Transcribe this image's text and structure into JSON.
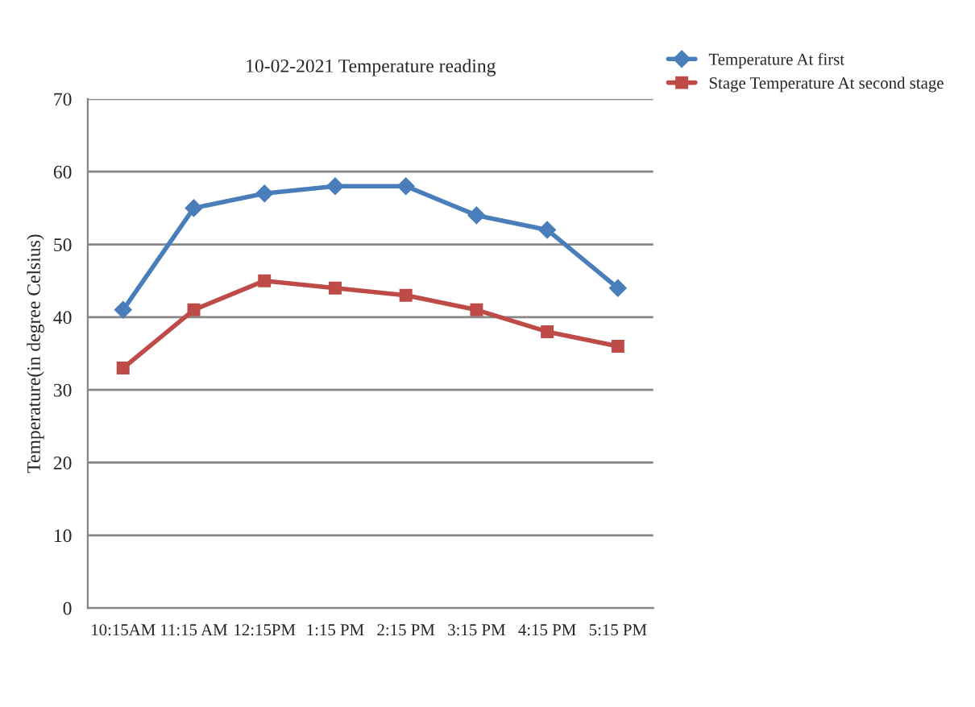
{
  "chart_data": {
    "type": "line",
    "title": "10-02-2021 Temperature reading",
    "ylabel": "Temperature(in degree Celsius)",
    "categories": [
      "10:15AM",
      "11:15 AM",
      "12:15PM",
      "1:15 PM",
      "2:15 PM",
      "3:15 PM",
      "4:15 PM",
      "5:15 PM"
    ],
    "series": [
      {
        "name": "Temperature At first",
        "color": "#4a7ebb",
        "marker": "diamond",
        "values": [
          41,
          55,
          57,
          58,
          58,
          54,
          52,
          44
        ]
      },
      {
        "name": "Stage Temperature At second stage",
        "color": "#be4b48",
        "marker": "square",
        "values": [
          33,
          41,
          45,
          44,
          43,
          41,
          38,
          36
        ]
      }
    ],
    "ylim": [
      0,
      70
    ],
    "yticks": [
      0,
      10,
      20,
      30,
      40,
      50,
      60,
      70
    ],
    "grid": "y",
    "legend": "top right"
  }
}
